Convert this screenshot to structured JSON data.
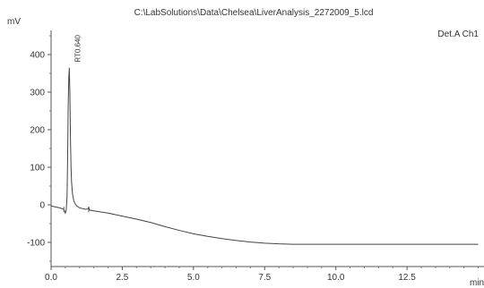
{
  "chart_data": {
    "type": "line",
    "title": "C:\\LabSolutions\\Data\\Chelsea\\LiverAnalysis_2272009_5.lcd",
    "ylabel": "mV",
    "xlabel": "min",
    "channel_label": "Det.A Ch1",
    "xlim": [
      0,
      15
    ],
    "ylim": [
      -150,
      450
    ],
    "x_ticks": [
      0,
      2.5,
      5,
      7.5,
      10,
      12.5
    ],
    "x_tick_labels": [
      "0.0",
      "2.5",
      "5.0",
      "7.5",
      "10.0",
      "12.5"
    ],
    "y_ticks": [
      -100,
      0,
      100,
      200,
      300,
      400
    ],
    "y_tick_labels": [
      "-100",
      "0",
      "100",
      "200",
      "300",
      "400"
    ],
    "grid": false,
    "series": [
      {
        "color": "#444444",
        "x": [
          0,
          0.3,
          0.45,
          0.5,
          0.53,
          0.56,
          0.58,
          0.6,
          0.62,
          0.64,
          0.66,
          0.68,
          0.7,
          0.72,
          0.75,
          0.8,
          0.85,
          0.9,
          1.0,
          1.1,
          1.2,
          1.3,
          1.32,
          1.35,
          1.5,
          2.0,
          2.5,
          3.0,
          3.5,
          4.0,
          4.5,
          5.0,
          5.5,
          6.0,
          6.5,
          7.0,
          7.5,
          8.0,
          8.5,
          9.0,
          10.0,
          11.0,
          12.0,
          13.0,
          14.0,
          15.0
        ],
        "y": [
          -3,
          -8,
          -12,
          -22,
          -15,
          20,
          120,
          260,
          335,
          365,
          300,
          180,
          100,
          60,
          30,
          10,
          2,
          -3,
          -8,
          -10,
          -12,
          -11,
          -5,
          -14,
          -16,
          -22,
          -30,
          -38,
          -47,
          -58,
          -68,
          -77,
          -84,
          -90,
          -95,
          -99,
          -102,
          -104,
          -105,
          -105,
          -105,
          -105,
          -105,
          -105,
          -105,
          -105
        ]
      }
    ],
    "annotations": [
      {
        "text": "RT0.640",
        "x": 0.64,
        "y": 370
      }
    ]
  }
}
